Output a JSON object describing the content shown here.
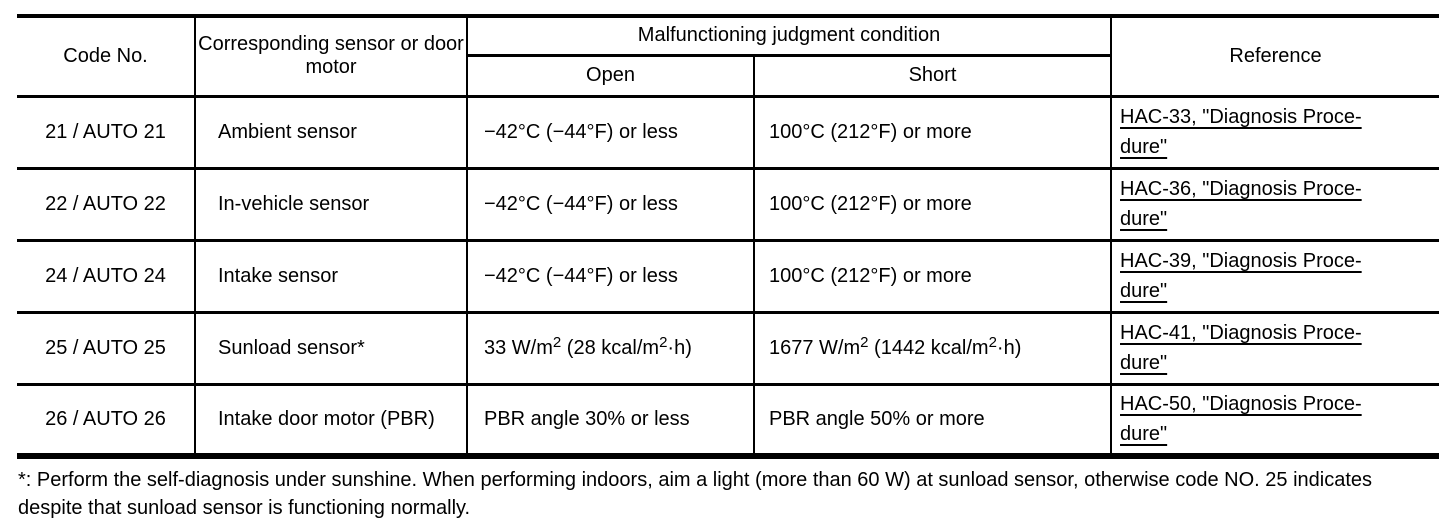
{
  "colors": {
    "text": "#000000",
    "background": "#ffffff",
    "border": "#000000",
    "link": "#000000"
  },
  "table": {
    "header": {
      "code": "Code No.",
      "sensor": "Corresponding sensor or door motor",
      "malfunction": "Malfunctioning judgment condition",
      "open": "Open",
      "short": "Short",
      "reference": "Reference"
    },
    "rows": [
      {
        "code": "21 / AUTO 21",
        "sensor": "Ambient sensor",
        "open": "−42°C (−44°F) or less",
        "short": "100°C (212°F) or more",
        "reference_lines": [
          "HAC-33, \"Diagnosis Proce-",
          "dure\""
        ]
      },
      {
        "code": "22 / AUTO 22",
        "sensor": "In-vehicle sensor",
        "open": "−42°C (−44°F) or less",
        "short": "100°C (212°F) or more",
        "reference_lines": [
          "HAC-36, \"Diagnosis Proce-",
          "dure\""
        ]
      },
      {
        "code": "24 / AUTO 24",
        "sensor": "Intake sensor",
        "open": "−42°C (−44°F) or less",
        "short": "100°C (212°F) or more",
        "reference_lines": [
          "HAC-39, \"Diagnosis Proce-",
          "dure\""
        ]
      },
      {
        "code": "25 / AUTO 25",
        "sensor": "Sunload sensor*",
        "open": [
          {
            "t": "33 W/m"
          },
          {
            "t": "2",
            "sup": true
          },
          {
            "t": " (28 kcal/m"
          },
          {
            "t": "2",
            "sup": true
          },
          {
            "t": "·h)"
          }
        ],
        "short": [
          {
            "t": "1677 W/m"
          },
          {
            "t": "2",
            "sup": true
          },
          {
            "t": " (1442 kcal/m"
          },
          {
            "t": "2",
            "sup": true
          },
          {
            "t": "·h)"
          }
        ],
        "reference_lines": [
          "HAC-41, \"Diagnosis Proce-",
          "dure\""
        ]
      },
      {
        "code": "26 / AUTO 26",
        "sensor": "Intake door motor (PBR)",
        "open": "PBR angle 30% or less",
        "short": "PBR angle 50% or more",
        "reference_lines": [
          "HAC-50, \"Diagnosis Proce-",
          "dure\""
        ]
      }
    ]
  },
  "footnote": "*: Perform the self-diagnosis under sunshine. When performing indoors, aim a light (more than 60 W) at sunload sensor, otherwise code NO. 25 indicates despite that sunload sensor is functioning normally."
}
